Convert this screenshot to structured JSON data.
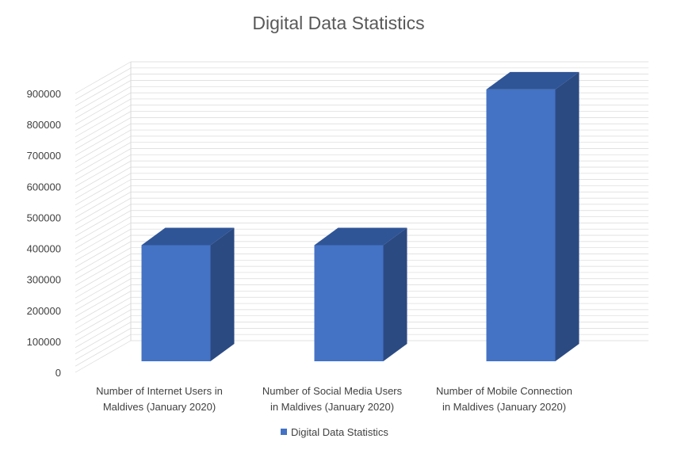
{
  "chart_data": {
    "type": "bar",
    "title": "Digital Data Statistics",
    "categories": [
      [
        "Number of Internet Users in",
        "Maldives (January 2020)"
      ],
      [
        "Number of Social Media Users",
        "in Maldives (January 2020)"
      ],
      [
        "Number of Mobile Connection",
        "in Maldives (January 2020)"
      ]
    ],
    "series": [
      {
        "name": "Digital Data Statistics",
        "values": [
          380000,
          380000,
          890000
        ]
      }
    ],
    "y_ticks": [
      "0",
      "100000",
      "200000",
      "300000",
      "400000",
      "500000",
      "600000",
      "700000",
      "800000",
      "900000"
    ],
    "ylim": [
      0,
      900000
    ],
    "grid": true,
    "legend_position": "bottom",
    "colors": {
      "front": "#4472C4",
      "side": "#2B4A82",
      "top": "#2F5597",
      "grid": "#D9D9D9"
    }
  }
}
